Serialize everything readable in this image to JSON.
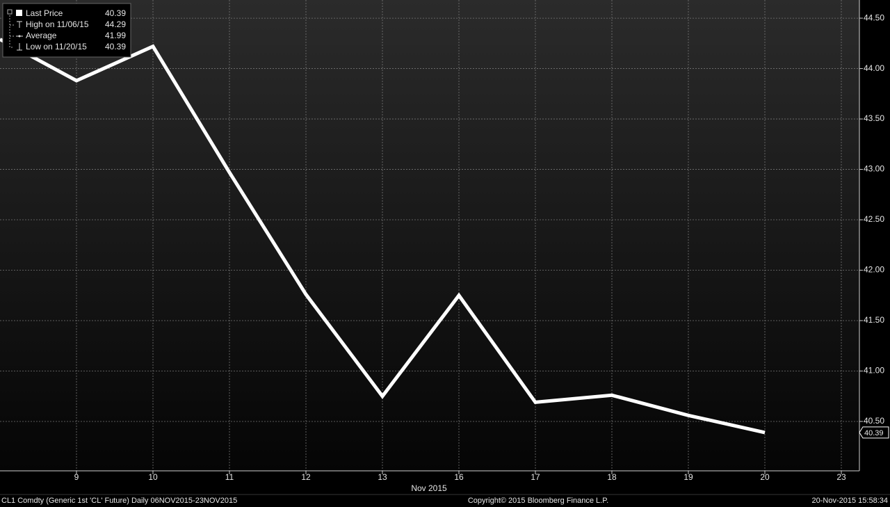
{
  "chart_data": {
    "type": "line",
    "x_label": "Nov 2015",
    "categories": [
      null,
      "9",
      "10",
      "11",
      "12",
      "13",
      "16",
      "17",
      "18",
      "19",
      "20",
      "23"
    ],
    "series": [
      {
        "name": "Last Price",
        "color": "#ffffff",
        "values": [
          44.29,
          43.88,
          44.22,
          42.97,
          41.76,
          40.75,
          41.75,
          40.69,
          40.76,
          40.56,
          40.39,
          null
        ]
      }
    ],
    "ylim": [
      40.01,
      44.68
    ],
    "yticks": [
      {
        "value": 40.5,
        "label": "40.50"
      },
      {
        "value": 41,
        "label": "41.00"
      },
      {
        "value": 41.5,
        "label": "41.50"
      },
      {
        "value": 42,
        "label": "42.00"
      },
      {
        "value": 42.5,
        "label": "42.50"
      },
      {
        "value": 43,
        "label": "43.00"
      },
      {
        "value": 43.5,
        "label": "43.50"
      },
      {
        "value": 44,
        "label": "44.00"
      },
      {
        "value": 44.5,
        "label": "44.50"
      }
    ],
    "grid": true,
    "legend": [
      {
        "label": "Last Price",
        "value": 40.39
      },
      {
        "label": "High on 11/06/15",
        "value": 44.29
      },
      {
        "label": "Average",
        "value": 41.99
      },
      {
        "label": "Low on 11/20/15",
        "value": 40.39
      }
    ],
    "footer": {
      "left": "CL1 Comdty (Generic 1st 'CL' Future)  Daily 06NOV2015-23NOV2015",
      "center": "Copyright© 2015 Bloomberg Finance L.P.",
      "right": "20-Nov-2015 15:58:34"
    }
  }
}
